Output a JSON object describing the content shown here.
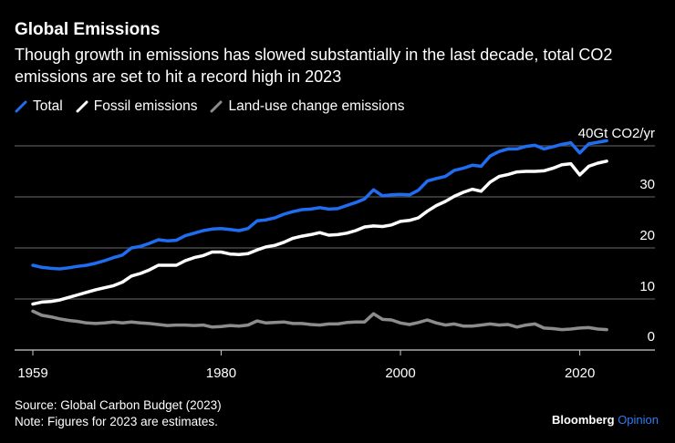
{
  "title": "Global Emissions",
  "subtitle": "Though growth in emissions has slowed substantially in the last decade, total CO2 emissions are set to hit a record high in 2023",
  "source": "Source: Global Carbon Budget (2023)",
  "note": "Note: Figures for 2023 are estimates.",
  "brand": {
    "name": "Bloomberg",
    "suffix": "Opinion"
  },
  "colors": {
    "total": "#1f6df0",
    "fossil": "#ffffff",
    "landuse": "#8c8c8c",
    "grid": "#555555",
    "axis": "#cccccc",
    "background": "#000000"
  },
  "chart_data": {
    "type": "line",
    "title": "Global Emissions",
    "xlabel": "",
    "ylabel": "Gt CO2/yr",
    "unit_label": "40Gt CO2/yr",
    "xlim": [
      1959,
      2023
    ],
    "ylim": [
      0,
      40
    ],
    "grid": true,
    "legend": "top-left",
    "x_ticks": [
      "1959",
      "1980",
      "2000",
      "2020"
    ],
    "y_ticks": [
      "0",
      "10",
      "20",
      "30",
      "40Gt CO2/yr"
    ],
    "y_tick_values": [
      0,
      10,
      20,
      30,
      40
    ],
    "x": [
      1959,
      1960,
      1961,
      1962,
      1963,
      1964,
      1965,
      1966,
      1967,
      1968,
      1969,
      1970,
      1971,
      1972,
      1973,
      1974,
      1975,
      1976,
      1977,
      1978,
      1979,
      1980,
      1981,
      1982,
      1983,
      1984,
      1985,
      1986,
      1987,
      1988,
      1989,
      1990,
      1991,
      1992,
      1993,
      1994,
      1995,
      1996,
      1997,
      1998,
      1999,
      2000,
      2001,
      2002,
      2003,
      2004,
      2005,
      2006,
      2007,
      2008,
      2009,
      2010,
      2011,
      2012,
      2013,
      2014,
      2015,
      2016,
      2017,
      2018,
      2019,
      2020,
      2021,
      2022,
      2023
    ],
    "series": [
      {
        "name": "Total",
        "values": [
          16.6,
          16.2,
          16.0,
          15.9,
          16.1,
          16.4,
          16.6,
          17.0,
          17.5,
          18.1,
          18.6,
          20.0,
          20.3,
          20.9,
          21.6,
          21.4,
          21.5,
          22.4,
          22.9,
          23.4,
          23.7,
          23.8,
          23.6,
          23.4,
          23.8,
          25.3,
          25.5,
          25.9,
          26.6,
          27.1,
          27.5,
          27.6,
          27.9,
          27.6,
          27.7,
          28.3,
          28.9,
          29.6,
          31.4,
          30.2,
          30.4,
          30.5,
          30.4,
          31.3,
          33.1,
          33.6,
          34.0,
          35.2,
          35.6,
          36.2,
          36.0,
          38.0,
          38.9,
          39.4,
          39.4,
          39.9,
          40.1,
          39.4,
          39.8,
          40.3,
          40.6,
          38.6,
          40.4,
          40.7,
          41.0
        ]
      },
      {
        "name": "Fossil emissions",
        "values": [
          9.0,
          9.4,
          9.5,
          9.8,
          10.3,
          10.8,
          11.3,
          11.8,
          12.2,
          12.6,
          13.3,
          14.5,
          15.0,
          15.7,
          16.6,
          16.6,
          16.6,
          17.5,
          18.1,
          18.5,
          19.2,
          19.2,
          18.8,
          18.7,
          18.9,
          19.6,
          20.2,
          20.5,
          21.1,
          21.9,
          22.3,
          22.6,
          23.0,
          22.5,
          22.6,
          22.9,
          23.4,
          24.1,
          24.3,
          24.2,
          24.5,
          25.2,
          25.4,
          25.9,
          27.2,
          28.3,
          29.1,
          30.1,
          30.9,
          31.5,
          31.1,
          32.9,
          34.0,
          34.4,
          34.9,
          35.0,
          35.0,
          35.1,
          35.6,
          36.3,
          36.5,
          34.3,
          36.0,
          36.6,
          37.0
        ]
      },
      {
        "name": "Land-use change emissions",
        "values": [
          7.6,
          6.8,
          6.5,
          6.1,
          5.8,
          5.6,
          5.3,
          5.2,
          5.3,
          5.5,
          5.3,
          5.5,
          5.3,
          5.2,
          5.0,
          4.8,
          4.9,
          4.9,
          4.8,
          4.9,
          4.5,
          4.6,
          4.8,
          4.7,
          4.9,
          5.7,
          5.3,
          5.4,
          5.5,
          5.2,
          5.2,
          5.0,
          4.9,
          5.1,
          5.1,
          5.4,
          5.5,
          5.5,
          7.1,
          6.0,
          5.9,
          5.3,
          5.0,
          5.4,
          5.9,
          5.3,
          4.9,
          5.1,
          4.7,
          4.7,
          4.9,
          5.1,
          4.9,
          5.0,
          4.5,
          4.9,
          5.1,
          4.3,
          4.2,
          4.0,
          4.1,
          4.3,
          4.4,
          4.1,
          4.0
        ]
      }
    ]
  }
}
